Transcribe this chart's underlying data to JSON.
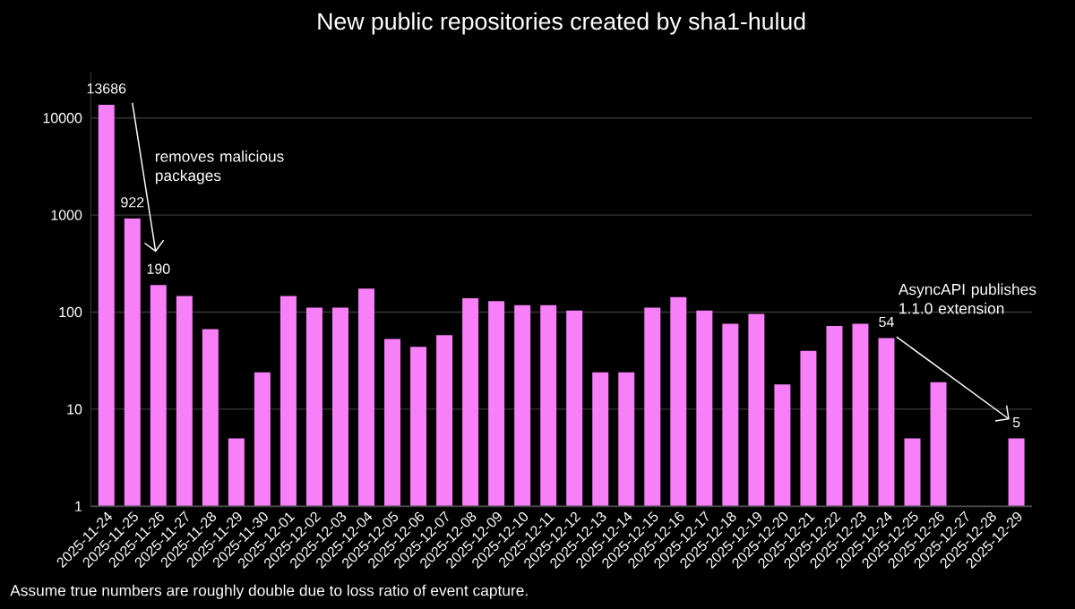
{
  "chart_data": {
    "type": "bar",
    "title": "New public repositories created by sha1-hulud",
    "categories": [
      "2025-11-24",
      "2025-11-25",
      "2025-11-26",
      "2025-11-27",
      "2025-11-28",
      "2025-11-29",
      "2025-11-30",
      "2025-12-01",
      "2025-12-02",
      "2025-12-03",
      "2025-12-04",
      "2025-12-05",
      "2025-12-06",
      "2025-12-07",
      "2025-12-08",
      "2025-12-09",
      "2025-12-10",
      "2025-12-11",
      "2025-12-12",
      "2025-12-13",
      "2025-12-14",
      "2025-12-15",
      "2025-12-16",
      "2025-12-17",
      "2025-12-18",
      "2025-12-19",
      "2025-12-20",
      "2025-12-21",
      "2025-12-22",
      "2025-12-23",
      "2025-12-24",
      "2025-12-25",
      "2025-12-26",
      "2025-12-27",
      "2025-12-28",
      "2025-12-29"
    ],
    "values": [
      13686,
      922,
      190,
      147,
      67,
      5,
      24,
      147,
      111,
      111,
      175,
      53,
      44,
      58,
      139,
      130,
      118,
      118,
      104,
      24,
      24,
      111,
      143,
      104,
      76,
      96,
      18,
      40,
      72,
      76,
      54,
      5,
      19,
      null,
      null,
      5
    ],
    "value_labels": [
      "13686",
      "922",
      "190",
      null,
      null,
      null,
      null,
      null,
      null,
      null,
      null,
      null,
      null,
      null,
      null,
      null,
      null,
      null,
      null,
      null,
      null,
      null,
      null,
      null,
      null,
      null,
      null,
      null,
      null,
      null,
      "54",
      null,
      null,
      null,
      null,
      "5"
    ],
    "color": "#f77ff7",
    "log": "y",
    "ylim": [
      1,
      30000
    ],
    "yticks": [
      1,
      10,
      100,
      1000,
      10000
    ],
    "grid": "y",
    "annotations": [
      "removes malicious packages",
      "AsyncAPI publishes 1.1.0 extension",
      "Assume true numbers are roughly double due to loss ratio of event capture."
    ]
  }
}
